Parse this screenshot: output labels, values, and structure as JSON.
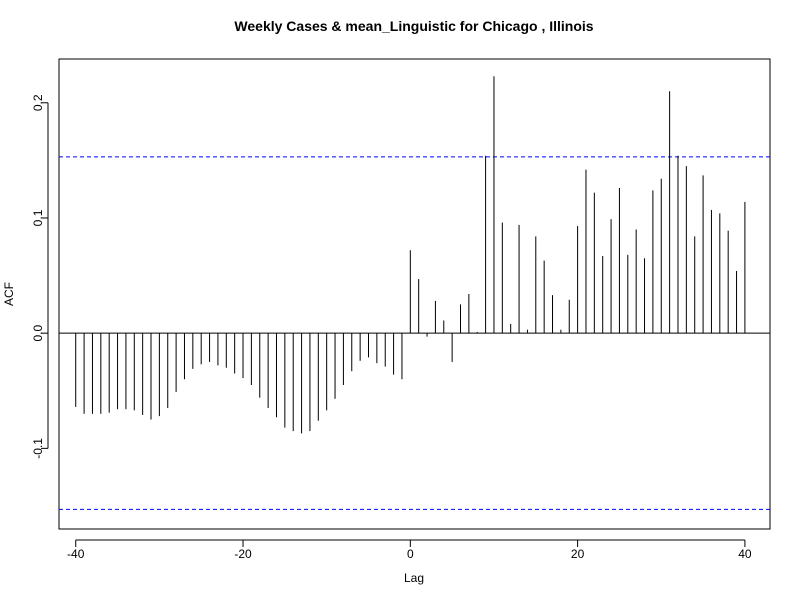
{
  "chart_data": {
    "type": "bar",
    "title": "Weekly Cases & mean_Linguistic for Chicago , Illinois",
    "xlabel": "Lag",
    "ylabel": "ACF",
    "xlim": [
      -42,
      43
    ],
    "ylim": [
      -0.17,
      0.238
    ],
    "x_ticks": [
      -40,
      -20,
      0,
      20,
      40
    ],
    "x_tick_labels": [
      "-40",
      "-20",
      "0",
      "20",
      "40"
    ],
    "y_ticks": [
      -0.1,
      0.0,
      0.1,
      0.2
    ],
    "y_tick_labels": [
      "-0.1",
      "0.0",
      "0.1",
      "0.2"
    ],
    "confidence_limits": [
      0.153,
      -0.153
    ],
    "lags": [
      -40,
      -39,
      -38,
      -37,
      -36,
      -35,
      -34,
      -33,
      -32,
      -31,
      -30,
      -29,
      -28,
      -27,
      -26,
      -25,
      -24,
      -23,
      -22,
      -21,
      -20,
      -19,
      -18,
      -17,
      -16,
      -15,
      -14,
      -13,
      -12,
      -11,
      -10,
      -9,
      -8,
      -7,
      -6,
      -5,
      -4,
      -3,
      -2,
      -1,
      0,
      1,
      2,
      3,
      4,
      5,
      6,
      7,
      8,
      9,
      10,
      11,
      12,
      13,
      14,
      15,
      16,
      17,
      18,
      19,
      20,
      21,
      22,
      23,
      24,
      25,
      26,
      27,
      28,
      29,
      30,
      31,
      32,
      33,
      34,
      35,
      36,
      37,
      38,
      39,
      40
    ],
    "values": [
      -0.064,
      -0.07,
      -0.07,
      -0.07,
      -0.069,
      -0.066,
      -0.066,
      -0.067,
      -0.071,
      -0.075,
      -0.072,
      -0.065,
      -0.051,
      -0.04,
      -0.031,
      -0.027,
      -0.025,
      -0.028,
      -0.03,
      -0.035,
      -0.039,
      -0.045,
      -0.056,
      -0.065,
      -0.073,
      -0.082,
      -0.085,
      -0.087,
      -0.085,
      -0.076,
      -0.067,
      -0.057,
      -0.045,
      -0.033,
      -0.024,
      -0.021,
      -0.026,
      -0.029,
      -0.036,
      -0.04,
      0.072,
      0.047,
      -0.003,
      0.028,
      0.011,
      -0.025,
      0.025,
      0.034,
      0.001,
      0.154,
      0.223,
      0.096,
      0.008,
      0.094,
      0.003,
      0.084,
      0.063,
      0.033,
      0.003,
      0.029,
      0.093,
      0.142,
      0.122,
      0.067,
      0.099,
      0.126,
      0.068,
      0.09,
      0.065,
      0.124,
      0.134,
      0.21,
      0.154,
      0.145,
      0.084,
      0.137,
      0.107,
      0.104,
      0.089,
      0.054,
      0.114
    ],
    "colors": {
      "bars": "#000000",
      "confidence_line": "#0000ff",
      "frame": "#000000"
    },
    "grid": false,
    "legend": "none"
  }
}
